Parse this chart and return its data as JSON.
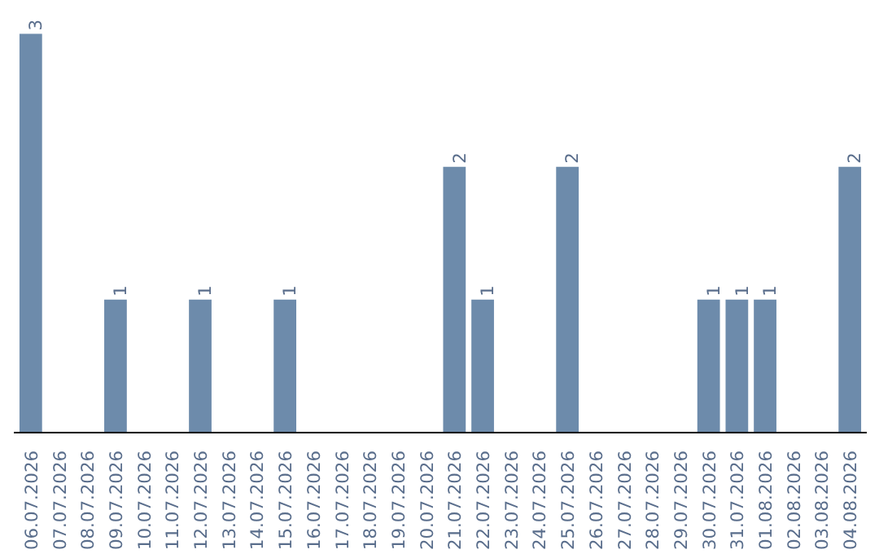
{
  "chart_data": {
    "type": "bar",
    "categories": [
      "06.07.2026",
      "07.07.2026",
      "08.07.2026",
      "09.07.2026",
      "10.07.2026",
      "11.07.2026",
      "12.07.2026",
      "13.07.2026",
      "14.07.2026",
      "15.07.2026",
      "16.07.2026",
      "17.07.2026",
      "18.07.2026",
      "19.07.2026",
      "20.07.2026",
      "21.07.2026",
      "22.07.2026",
      "23.07.2026",
      "24.07.2026",
      "25.07.2026",
      "26.07.2026",
      "27.07.2026",
      "28.07.2026",
      "29.07.2026",
      "30.07.2026",
      "31.07.2026",
      "01.08.2026",
      "02.08.2026",
      "03.08.2026",
      "04.08.2026"
    ],
    "values": [
      3,
      0,
      0,
      1,
      0,
      0,
      1,
      0,
      0,
      1,
      0,
      0,
      0,
      0,
      0,
      2,
      1,
      0,
      0,
      2,
      0,
      0,
      0,
      0,
      1,
      1,
      1,
      0,
      0,
      2
    ],
    "value_labels": [
      "3",
      null,
      null,
      "1",
      null,
      null,
      "1",
      null,
      null,
      "1",
      null,
      null,
      null,
      null,
      null,
      "2",
      "1",
      null,
      null,
      "2",
      null,
      null,
      null,
      null,
      "1",
      "1",
      "1",
      null,
      null,
      "2"
    ],
    "color": "#6d8bab",
    "grid": false
  }
}
